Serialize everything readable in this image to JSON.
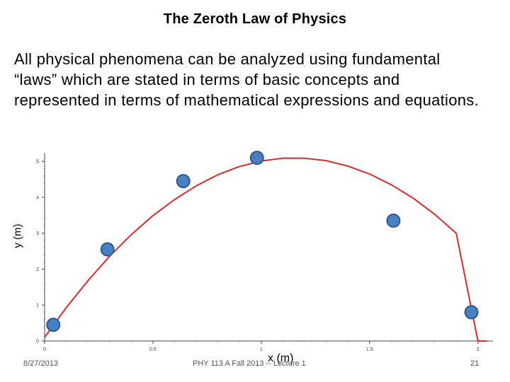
{
  "slide": {
    "title": "The Zeroth Law of Physics",
    "body": "All physical phenomena can be analyzed using fundamental “laws” which are stated in terms of basic concepts and represented in terms of mathematical expressions and equations."
  },
  "footer": {
    "date": "8/27/2013",
    "course": "PHY 113 A  Fall 2013 -- Lecture 1",
    "page": "21"
  },
  "chart_data": {
    "type": "scatter",
    "xlabel": "x (m)",
    "ylabel": "y (m)",
    "xlim": [
      0,
      2.05
    ],
    "ylim": [
      0,
      5.2
    ],
    "x_ticks": [
      "0",
      "0.5",
      "1",
      "1.5",
      "2"
    ],
    "y_ticks": [
      "0",
      "1",
      "2",
      "3",
      "4",
      "5"
    ],
    "grid": false,
    "curve": {
      "type": "line",
      "color": "#d92b2b",
      "x": [
        0.0,
        0.1,
        0.2,
        0.3,
        0.4,
        0.5,
        0.6,
        0.7,
        0.8,
        0.9,
        1.0,
        1.1,
        1.2,
        1.3,
        1.4,
        1.5,
        1.6,
        1.7,
        1.8,
        1.9,
        2.0,
        2.04
      ],
      "y": [
        0.1,
        0.93,
        1.68,
        2.36,
        2.96,
        3.49,
        3.94,
        4.32,
        4.63,
        4.86,
        5.01,
        5.09,
        5.09,
        5.02,
        4.87,
        4.65,
        4.35,
        3.98,
        3.53,
        3.0,
        0.0,
        0.0
      ]
    },
    "points": {
      "color": "#4a7fc1",
      "x": [
        0.04,
        0.29,
        0.64,
        0.98,
        1.61,
        1.97
      ],
      "y": [
        0.45,
        2.55,
        4.45,
        5.1,
        3.35,
        0.8
      ]
    }
  }
}
